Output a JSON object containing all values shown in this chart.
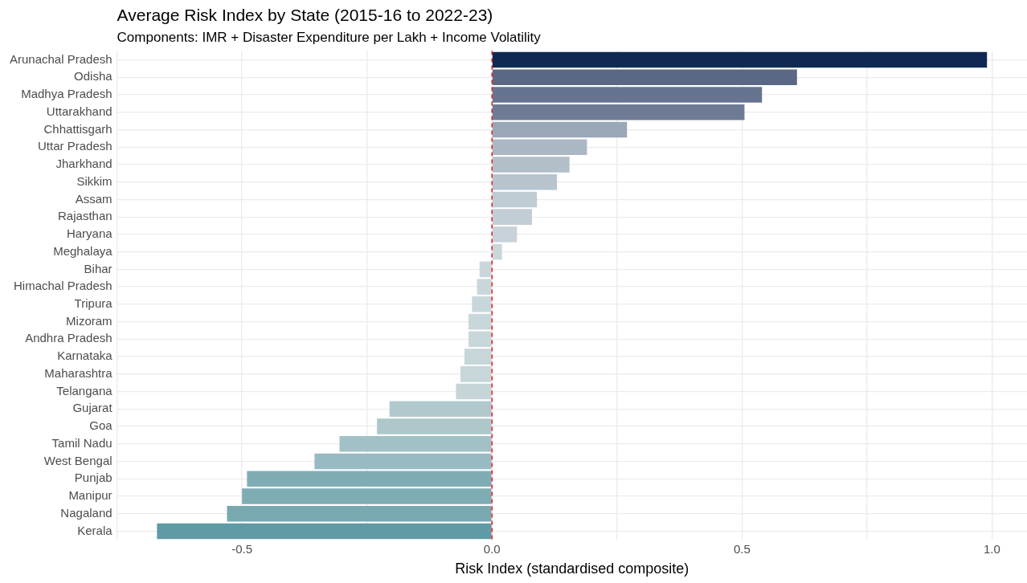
{
  "chart_data": {
    "type": "bar",
    "orientation": "horizontal",
    "title": "Average Risk Index by State (2015-16 to 2022-23)",
    "subtitle": "Components: IMR + Disaster Expenditure per Lakh + Income Volatility",
    "xlabel": "Risk Index (standardised composite)",
    "categories": [
      "Arunachal Pradesh",
      "Odisha",
      "Madhya Pradesh",
      "Uttarakhand",
      "Chhattisgarh",
      "Uttar Pradesh",
      "Jharkhand",
      "Sikkim",
      "Assam",
      "Rajasthan",
      "Haryana",
      "Meghalaya",
      "Bihar",
      "Himachal Pradesh",
      "Tripura",
      "Mizoram",
      "Andhra Pradesh",
      "Karnataka",
      "Maharashtra",
      "Telangana",
      "Gujarat",
      "Goa",
      "Tamil Nadu",
      "West Bengal",
      "Punjab",
      "Manipur",
      "Nagaland",
      "Kerala"
    ],
    "values": [
      0.99,
      0.61,
      0.54,
      0.505,
      0.27,
      0.19,
      0.155,
      0.13,
      0.09,
      0.08,
      0.05,
      0.02,
      -0.025,
      -0.03,
      -0.04,
      -0.047,
      -0.047,
      -0.055,
      -0.063,
      -0.072,
      -0.205,
      -0.23,
      -0.305,
      -0.355,
      -0.49,
      -0.5,
      -0.53,
      -0.67
    ],
    "colors": [
      "#0e2a52",
      "#5a6885",
      "#67748f",
      "#6e7b95",
      "#9aa7b7",
      "#abb8c4",
      "#b2bfc9",
      "#b8c4cd",
      "#bfccd3",
      "#c2ced5",
      "#c7d3d8",
      "#cad6da",
      "#c9d7db",
      "#c9d7db",
      "#c8d7db",
      "#c7d7da",
      "#c7d7da",
      "#c6d6d9",
      "#c6d6d9",
      "#c5d5d8",
      "#b1c9cd",
      "#adc7cb",
      "#a2c1c7",
      "#98bac2",
      "#80adb4",
      "#7eacb3",
      "#78a9b1",
      "#5f9aa5"
    ],
    "xlim": [
      -0.75,
      1.07
    ],
    "xticks": [
      {
        "value": -0.75,
        "label": null
      },
      {
        "value": -0.5,
        "label": "-0.5"
      },
      {
        "value": -0.25,
        "label": null
      },
      {
        "value": 0,
        "label": "0.0"
      },
      {
        "value": 0.25,
        "label": null
      },
      {
        "value": 0.5,
        "label": "0.5"
      },
      {
        "value": 0.75,
        "label": null
      },
      {
        "value": 1,
        "label": "1.0"
      }
    ],
    "grid": true,
    "ref_lines": [
      {
        "axis": "x",
        "value": 0,
        "color": "#e8191c",
        "line_style": "dashed"
      }
    ]
  }
}
